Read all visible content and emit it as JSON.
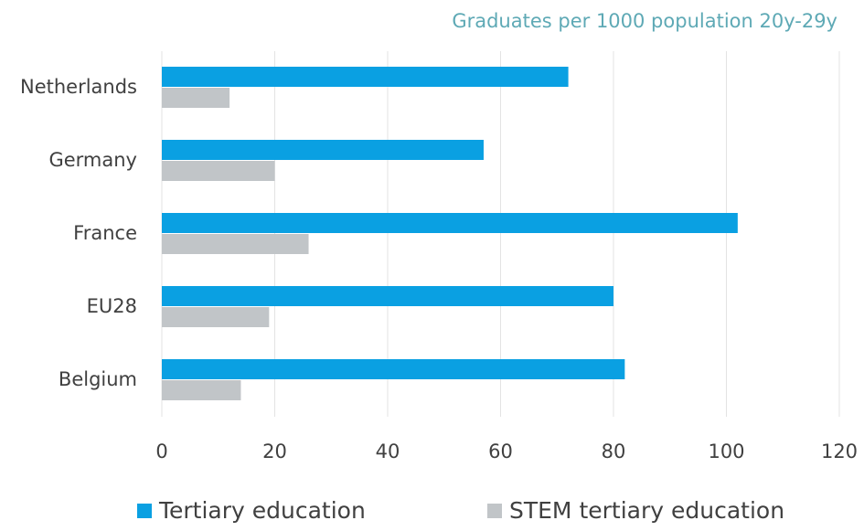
{
  "chart_data": {
    "type": "barh",
    "title": "Graduates per 1000 population 20y-29y",
    "categories": [
      "Netherlands",
      "Germany",
      "France",
      "EU28",
      "Belgium"
    ],
    "series": [
      {
        "name": "Tertiary education",
        "color": "#0aa0e2",
        "values": [
          72,
          57,
          102,
          80,
          82
        ]
      },
      {
        "name": "STEM tertiary education",
        "color": "#c1c5c8",
        "values": [
          12,
          20,
          26,
          19,
          14
        ]
      }
    ],
    "xlim": [
      0,
      120
    ],
    "xticks": [
      0,
      20,
      40,
      60,
      80,
      100,
      120
    ],
    "grid": true,
    "legend": "bottom"
  }
}
